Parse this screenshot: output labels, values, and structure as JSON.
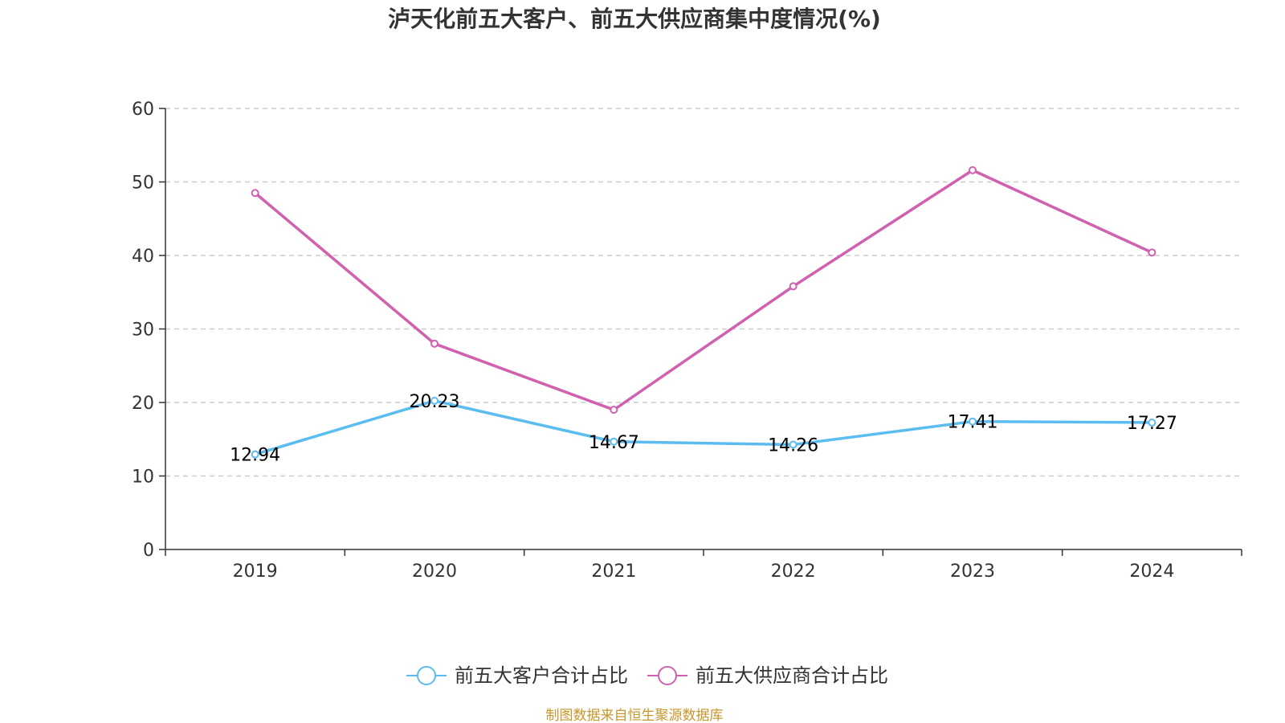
{
  "colors": {
    "customers": "#5bbcf0",
    "suppliers": "#d060b0",
    "source": "#c8962d",
    "axis": "#333333",
    "grid": "#cccccc"
  },
  "chart_data": {
    "type": "line",
    "title": "泸天化前五大客户、前五大供应商集中度情况(%)",
    "categories": [
      "2019",
      "2020",
      "2021",
      "2022",
      "2023",
      "2024"
    ],
    "ylim": [
      0,
      60
    ],
    "yticks": [
      0,
      10,
      20,
      30,
      40,
      50,
      60
    ],
    "grid": true,
    "legend_position": "bottom-center",
    "series": [
      {
        "name": "前五大客户合计占比",
        "values": [
          12.94,
          20.23,
          14.67,
          14.26,
          17.41,
          17.27
        ],
        "labels": [
          "12.94",
          "20.23",
          "14.67",
          "14.26",
          "17.41",
          "17.27"
        ],
        "show_labels": true
      },
      {
        "name": "前五大供应商合计占比",
        "values": [
          48.5,
          28.0,
          19.0,
          35.8,
          51.6,
          40.4
        ],
        "show_labels": false
      }
    ],
    "source": "制图数据来自恒生聚源数据库"
  }
}
